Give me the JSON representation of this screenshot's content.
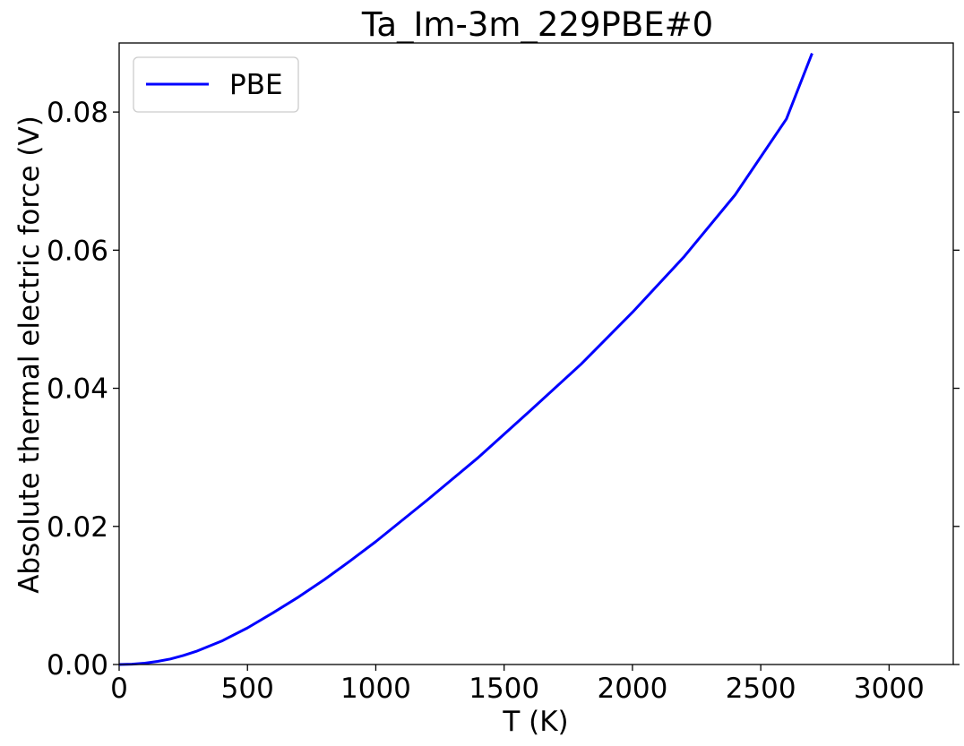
{
  "chart_data": {
    "type": "line",
    "title": "Ta_Im-3m_229PBE#0",
    "xlabel": "T (K)",
    "ylabel": "Absolute thermal electric force (V)",
    "xlim": [
      0,
      3250
    ],
    "ylim": [
      0,
      0.09
    ],
    "xticks": [
      0,
      500,
      1000,
      1500,
      2000,
      2500,
      3000
    ],
    "xtick_labels": [
      "0",
      "500",
      "1000",
      "1500",
      "2000",
      "2500",
      "3000"
    ],
    "yticks": [
      0.0,
      0.02,
      0.04,
      0.06,
      0.08
    ],
    "ytick_labels": [
      "0.00",
      "0.02",
      "0.04",
      "0.06",
      "0.08"
    ],
    "grid": false,
    "legend_position": "upper-left",
    "series": [
      {
        "name": "PBE",
        "color": "#0000ff",
        "x": [
          0,
          50,
          100,
          150,
          200,
          250,
          300,
          400,
          500,
          600,
          700,
          800,
          900,
          1000,
          1200,
          1400,
          1600,
          1800,
          2000,
          2200,
          2400,
          2600,
          2700
        ],
        "y": [
          0.0,
          5e-05,
          0.0002,
          0.00045,
          0.0008,
          0.0013,
          0.0019,
          0.0034,
          0.0053,
          0.0075,
          0.0098,
          0.0123,
          0.015,
          0.0178,
          0.0238,
          0.03,
          0.0367,
          0.0435,
          0.051,
          0.059,
          0.068,
          0.079,
          0.0885
        ]
      }
    ]
  }
}
